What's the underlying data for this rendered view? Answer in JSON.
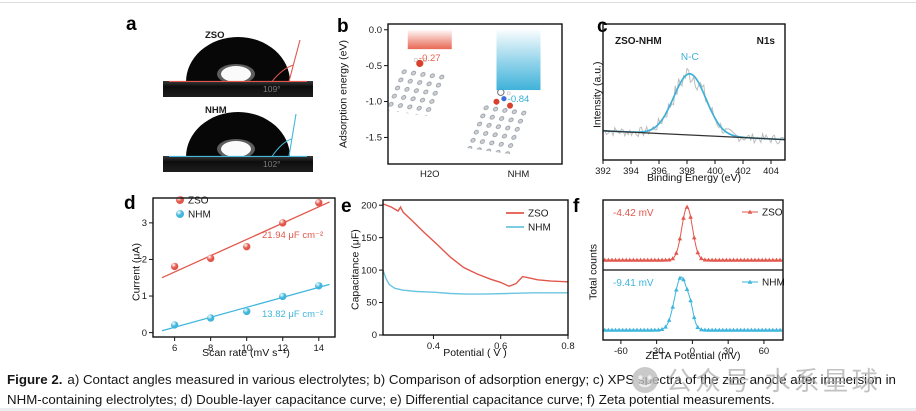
{
  "caption": {
    "bold": "Figure 2.",
    "line1": "a) Contact angles measured in various electrolytes; b) Comparison of adsorption energy; c) XPS spectra of the zinc anode after immersion in",
    "line2": "NHM-containing electrolytes; d) Double-layer capacitance curve; e) Differential capacitance curve; f) Zeta potential measurements."
  },
  "watermark": {
    "text": "公众号·水系星球"
  },
  "panels": {
    "a": {
      "letter": "a",
      "images": [
        {
          "name": "ZSO",
          "angle": "109°",
          "line_color": "#e2574b"
        },
        {
          "name": "NHM",
          "angle": "102°",
          "line_color": "#45b8dc"
        }
      ]
    },
    "b": {
      "letter": "b"
    },
    "c": {
      "letter": "c"
    },
    "d": {
      "letter": "d"
    },
    "e": {
      "letter": "e"
    },
    "f": {
      "letter": "f"
    }
  },
  "chart_data": [
    {
      "panel": "b",
      "type": "bar",
      "ylabel": "Adsorption energy (eV)",
      "categories": [
        "H2O",
        "NHM"
      ],
      "values": [
        -0.27,
        -0.84
      ],
      "value_labels": [
        "-0.27",
        "-0.84"
      ],
      "bar_colors": [
        "#e8604c",
        "#35aed8"
      ],
      "ylim": [
        -1.87,
        0.08
      ],
      "yticks": [
        {
          "v": 0,
          "l": "0.0"
        },
        {
          "v": -0.5,
          "l": "-0.5"
        },
        {
          "v": -1.0,
          "l": "-1.0"
        },
        {
          "v": -1.5,
          "l": "-1.5"
        }
      ]
    },
    {
      "panel": "c",
      "type": "line",
      "xlabel": "Binding Energy (eV)",
      "ylabel": "Intensity (a.u.)",
      "xlim": [
        392,
        405
      ],
      "xticks": [
        {
          "v": 392,
          "l": "392"
        },
        {
          "v": 394,
          "l": "394"
        },
        {
          "v": 396,
          "l": "396"
        },
        {
          "v": 398,
          "l": "398"
        },
        {
          "v": 400,
          "l": "400"
        },
        {
          "v": 402,
          "l": "402"
        },
        {
          "v": 404,
          "l": "404"
        }
      ],
      "annotations": {
        "sample": "ZSO-NHM",
        "orbital": "N1s",
        "peak_label": "N-C"
      },
      "fit_peak": {
        "center": 398.2,
        "sigma": 1.15,
        "amplitude": 0.45
      },
      "baseline": [
        0.215,
        0.15
      ],
      "colors": {
        "raw": "#bdbdbd",
        "fit": "#3fb0d8",
        "baseline": "#333333"
      }
    },
    {
      "panel": "d",
      "type": "scatter",
      "xlabel": "Scan rate (mV s⁻¹)",
      "ylabel": "Current (μA)",
      "xlim": [
        4.8,
        14.9
      ],
      "ylim": [
        -0.012,
        0.368
      ],
      "xticks": [
        {
          "v": 6,
          "l": "6"
        },
        {
          "v": 8,
          "l": "8"
        },
        {
          "v": 10,
          "l": "10"
        },
        {
          "v": 12,
          "l": "12"
        },
        {
          "v": 14,
          "l": "14"
        }
      ],
      "yticks": [
        {
          "v": 0,
          "l": "0.0"
        },
        {
          "v": 0.1,
          "l": "0.1"
        },
        {
          "v": 0.2,
          "l": "0.2"
        },
        {
          "v": 0.3,
          "l": "0.3"
        }
      ],
      "series": [
        {
          "name": "ZSO",
          "color": "#e2574b",
          "points": [
            [
              6,
              0.181
            ],
            [
              8,
              0.203
            ],
            [
              10,
              0.235
            ],
            [
              12,
              0.3
            ],
            [
              14,
              0.355
            ]
          ],
          "capacitance_label": "21.94 μF cm⁻²"
        },
        {
          "name": "NHM",
          "color": "#41b6dc",
          "points": [
            [
              6,
              0.021
            ],
            [
              8,
              0.04
            ],
            [
              10,
              0.058
            ],
            [
              12,
              0.099
            ],
            [
              14,
              0.128
            ]
          ],
          "capacitance_label": "13.82 μF cm⁻²"
        }
      ]
    },
    {
      "panel": "e",
      "type": "line",
      "xlabel": "Potential ( V )",
      "ylabel": "Capacitance (μF)",
      "xlim": [
        0.25,
        0.8
      ],
      "ylim": [
        0,
        208
      ],
      "xticks": [
        {
          "v": 0.4,
          "l": "0.4"
        },
        {
          "v": 0.6,
          "l": "0.6"
        },
        {
          "v": 0.8,
          "l": "0.8"
        }
      ],
      "yticks": [
        {
          "v": 0,
          "l": "0"
        },
        {
          "v": 50,
          "l": "50"
        },
        {
          "v": 100,
          "l": "100"
        },
        {
          "v": 150,
          "l": "150"
        },
        {
          "v": 200,
          "l": "200"
        }
      ],
      "series": [
        {
          "name": "ZSO",
          "color": "#e2574b",
          "points": [
            [
              0.25,
              202
            ],
            [
              0.275,
              197
            ],
            [
              0.295,
              191
            ],
            [
              0.302,
              197
            ],
            [
              0.31,
              189
            ],
            [
              0.335,
              177
            ],
            [
              0.37,
              159
            ],
            [
              0.41,
              140
            ],
            [
              0.45,
              120
            ],
            [
              0.49,
              104
            ],
            [
              0.53,
              94
            ],
            [
              0.57,
              86
            ],
            [
              0.6,
              81
            ],
            [
              0.625,
              75
            ],
            [
              0.645,
              79
            ],
            [
              0.665,
              90
            ],
            [
              0.685,
              88
            ],
            [
              0.71,
              85
            ],
            [
              0.75,
              83
            ],
            [
              0.8,
              82
            ]
          ]
        },
        {
          "name": "NHM",
          "color": "#6ac5e0",
          "points": [
            [
              0.25,
              100
            ],
            [
              0.258,
              88
            ],
            [
              0.268,
              78
            ],
            [
              0.285,
              72
            ],
            [
              0.31,
              69
            ],
            [
              0.35,
              67
            ],
            [
              0.4,
              66
            ],
            [
              0.45,
              64
            ],
            [
              0.5,
              63
            ],
            [
              0.55,
              63
            ],
            [
              0.62,
              64
            ],
            [
              0.7,
              65
            ],
            [
              0.8,
              65
            ]
          ]
        }
      ]
    },
    {
      "panel": "f",
      "type": "peaks",
      "xlabel": "ZETA Potential (mV)",
      "ylabel": "Total counts",
      "xlim": [
        -75,
        76
      ],
      "xticks": [
        {
          "v": -60,
          "l": "-60"
        },
        {
          "v": -30,
          "l": "-30"
        },
        {
          "v": 0,
          "l": "0"
        },
        {
          "v": 30,
          "l": "30"
        },
        {
          "v": 60,
          "l": "60"
        }
      ],
      "series": [
        {
          "name": "ZSO",
          "color": "#e2574b",
          "peak_mv": -4.42,
          "peak_label": "-4.42 mV",
          "sigma": 4.5
        },
        {
          "name": "NHM",
          "color": "#3db5dc",
          "peak_mv": -9.41,
          "peak_label": "-9.41 mV",
          "sigma": 5.5
        }
      ]
    }
  ]
}
